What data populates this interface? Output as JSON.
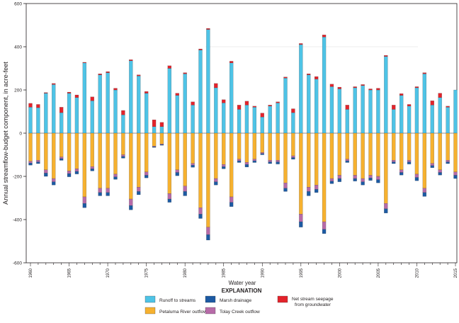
{
  "chart_data": {
    "type": "bar",
    "stacked": true,
    "xlabel": "Water year",
    "ylabel": "Annual streamflow-budget component, in acre-feet",
    "ylim": [
      -600,
      600
    ],
    "yticks": [
      -600,
      -400,
      -200,
      0,
      200,
      400,
      600
    ],
    "xtick_labels": [
      "1960",
      "1965",
      "1970",
      "1975",
      "1980",
      "1985",
      "1990",
      "1995",
      "2000",
      "2005",
      "2010",
      "2015"
    ],
    "legend_title": "EXPLANATION",
    "years": [
      1960,
      1961,
      1962,
      1963,
      1964,
      1965,
      1966,
      1967,
      1968,
      1969,
      1970,
      1971,
      1972,
      1973,
      1974,
      1975,
      1976,
      1977,
      1978,
      1979,
      1980,
      1981,
      1982,
      1983,
      1984,
      1985,
      1986,
      1987,
      1988,
      1989,
      1990,
      1991,
      1992,
      1993,
      1994,
      1995,
      1996,
      1997,
      1998,
      1999,
      2000,
      2001,
      2002,
      2003,
      2004,
      2005,
      2006,
      2007,
      2008,
      2009,
      2010,
      2011,
      2012,
      2013,
      2014,
      2015
    ],
    "positive_series": [
      {
        "key": "runoff",
        "name": "Runoff to streams",
        "color": "#4ec3e6",
        "values": [
          120,
          118,
          185,
          225,
          95,
          185,
          165,
          325,
          150,
          270,
          280,
          200,
          85,
          335,
          265,
          185,
          30,
          30,
          300,
          175,
          275,
          130,
          385,
          480,
          210,
          140,
          325,
          110,
          130,
          120,
          75,
          125,
          140,
          255,
          95,
          410,
          270,
          250,
          445,
          215,
          205,
          110,
          210,
          220,
          200,
          200,
          355,
          110,
          175,
          125,
          210,
          275,
          130,
          165,
          120,
          200
        ]
      },
      {
        "key": "seepage",
        "name": "Net stream seepage from groundwater",
        "color": "#e3232b",
        "values": [
          18,
          15,
          3,
          5,
          25,
          5,
          12,
          3,
          18,
          5,
          5,
          8,
          20,
          5,
          5,
          8,
          32,
          20,
          12,
          10,
          5,
          15,
          5,
          5,
          20,
          15,
          8,
          20,
          18,
          5,
          18,
          5,
          5,
          5,
          18,
          5,
          5,
          12,
          10,
          12,
          8,
          20,
          5,
          5,
          5,
          8,
          5,
          20,
          8,
          8,
          5,
          5,
          20,
          20,
          5,
          0
        ]
      }
    ],
    "negative_series": [
      {
        "key": "petaluma",
        "name": "Petaluma River outflow",
        "color": "#f6b12f",
        "values": [
          -130,
          -125,
          -170,
          -210,
          -110,
          -175,
          -165,
          -295,
          -155,
          -255,
          -255,
          -190,
          -100,
          -305,
          -250,
          -180,
          -60,
          -50,
          -280,
          -170,
          -245,
          -140,
          -345,
          -435,
          -210,
          -145,
          -295,
          -120,
          -135,
          -120,
          -90,
          -125,
          -125,
          -230,
          -105,
          -375,
          -250,
          -240,
          -410,
          -210,
          -195,
          -120,
          -195,
          -210,
          -195,
          -200,
          -325,
          -125,
          -170,
          -125,
          -190,
          -255,
          -140,
          -170,
          -125,
          -180
        ]
      },
      {
        "key": "tolay",
        "name": "Tolay Creek outflow",
        "color": "#b76ba8",
        "values": [
          -8,
          -8,
          -15,
          -15,
          -8,
          -12,
          -12,
          -30,
          -10,
          -20,
          -20,
          -12,
          -8,
          -30,
          -20,
          -15,
          -3,
          -3,
          -25,
          -12,
          -25,
          -8,
          -30,
          -35,
          -15,
          -10,
          -25,
          -8,
          -10,
          -8,
          -5,
          -8,
          -8,
          -25,
          -8,
          -35,
          -20,
          -20,
          -35,
          -12,
          -15,
          -8,
          -15,
          -15,
          -12,
          -15,
          -25,
          -8,
          -12,
          -8,
          -15,
          -20,
          -10,
          -12,
          -8,
          -15
        ]
      },
      {
        "key": "marsh",
        "name": "Marsh drainage",
        "color": "#1c5aa3",
        "values": [
          -10,
          -8,
          -15,
          -15,
          -8,
          -15,
          -12,
          -20,
          -10,
          -15,
          -15,
          -12,
          -8,
          -20,
          -15,
          -12,
          -3,
          -3,
          -15,
          -15,
          -20,
          -10,
          -20,
          -25,
          -15,
          -10,
          -20,
          -8,
          -12,
          -8,
          -5,
          -8,
          -10,
          -15,
          -8,
          -25,
          -20,
          -15,
          -20,
          -12,
          -15,
          -8,
          -12,
          -15,
          -12,
          -15,
          -20,
          -8,
          -12,
          -10,
          -15,
          -18,
          -10,
          -12,
          -8,
          -15
        ]
      }
    ],
    "legend_order": [
      "runoff",
      "marsh",
      "seepage",
      "petaluma",
      "tolay"
    ]
  }
}
